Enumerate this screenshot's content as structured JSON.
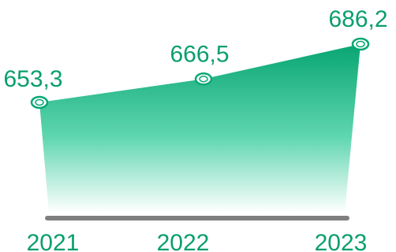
{
  "chart_data": {
    "type": "area",
    "categories": [
      "2021",
      "2022",
      "2023"
    ],
    "values": [
      653.3,
      666.5,
      686.2
    ],
    "value_labels": [
      "653,3",
      "666,5",
      "686,2"
    ],
    "title": "",
    "xlabel": "",
    "ylabel": "",
    "ylim": [
      0,
      700
    ],
    "grid": false,
    "legend": "none"
  },
  "colors": {
    "accent": "#07a874",
    "area_top": "#08a572",
    "area_bottom": "#ffffff",
    "axis": "#7f7f7f",
    "label": "#0a9e6e"
  },
  "icons": {
    "marker": "ring-marker-icon"
  }
}
